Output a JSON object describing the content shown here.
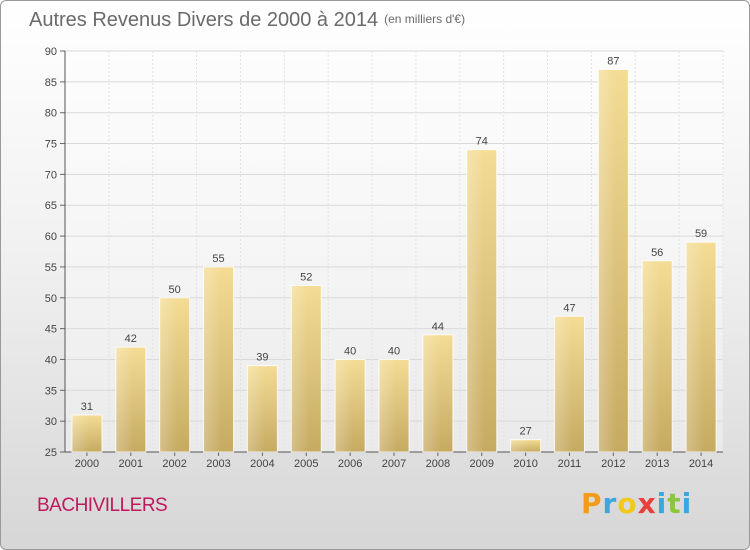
{
  "header": {
    "title": "Autres Revenus Divers de 2000 à 2014",
    "unit": "(en milliers d'€)"
  },
  "footer": {
    "commune": "BACHIVILLERS",
    "brand_letters": [
      "P",
      "r",
      "o",
      "x",
      "i",
      "t",
      "i"
    ],
    "brand_colors": [
      "#f59a1b",
      "#3aa8de",
      "#f2c81c",
      "#e8403b",
      "#3aa8de",
      "#8cc63f",
      "#3aa8de"
    ]
  },
  "chart_data": {
    "type": "bar",
    "title": "Autres Revenus Divers de 2000 à 2014",
    "subtitle": "(en milliers d'€)",
    "categories": [
      "2000",
      "2001",
      "2002",
      "2003",
      "2004",
      "2005",
      "2006",
      "2007",
      "2008",
      "2009",
      "2010",
      "2011",
      "2012",
      "2013",
      "2014"
    ],
    "values": [
      31,
      42,
      50,
      55,
      39,
      52,
      40,
      40,
      44,
      74,
      27,
      47,
      87,
      56,
      59
    ],
    "ylim": [
      25,
      90
    ],
    "yticks": [
      25,
      30,
      35,
      40,
      45,
      50,
      55,
      60,
      65,
      70,
      75,
      80,
      85,
      90
    ],
    "grid": true,
    "bar_color": "#e3c87a"
  }
}
